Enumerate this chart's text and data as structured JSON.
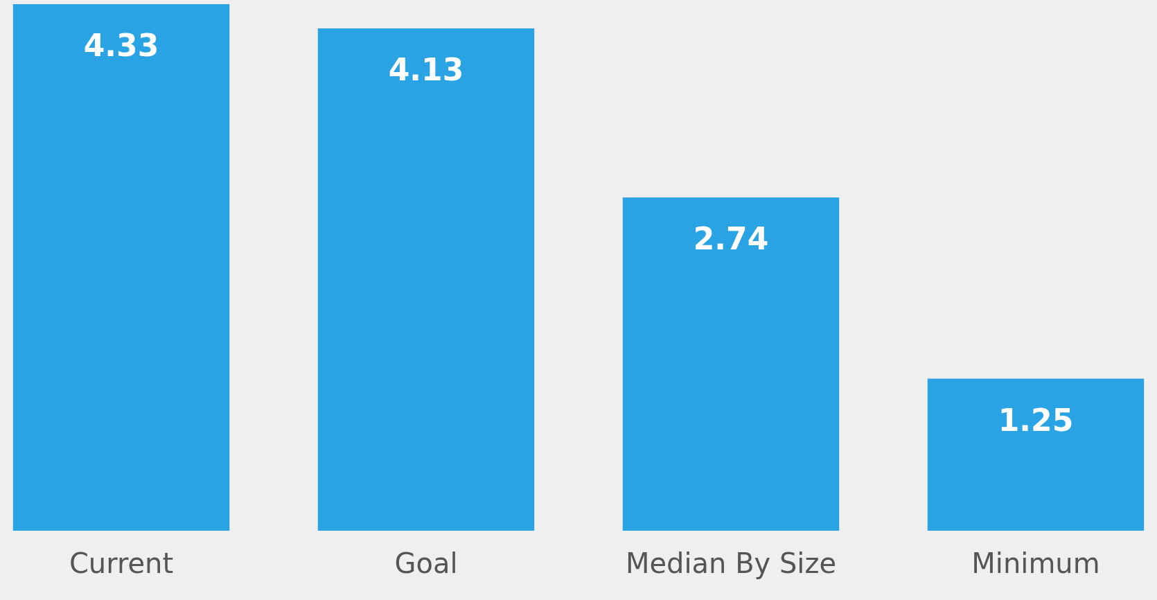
{
  "chart_data": {
    "type": "bar",
    "categories": [
      "Current",
      "Goal",
      "Median By Size",
      "Minimum"
    ],
    "values": [
      4.33,
      4.13,
      2.74,
      1.25
    ],
    "color": "#2aa3e4",
    "data_labels": true
  }
}
